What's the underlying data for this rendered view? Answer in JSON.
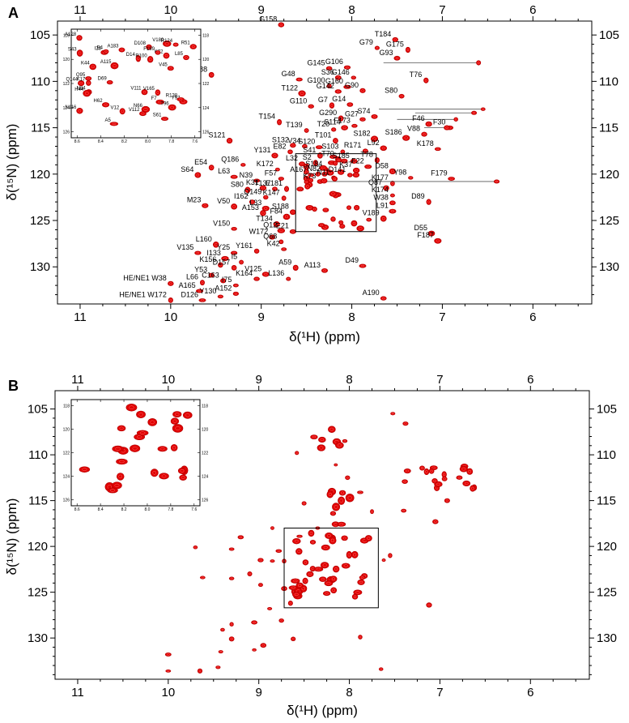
{
  "figure": {
    "panel_labels": [
      "A",
      "B"
    ]
  },
  "chart_data": [
    {
      "type": "scatter",
      "panel": "A",
      "title": "",
      "xlabel": "δ(¹H) (ppm)",
      "ylabel": "δ(¹⁵N) (ppm)",
      "x_axis_reversed": true,
      "y_axis_reversed": true,
      "xlim": [
        11.25,
        5.35
      ],
      "ylim": [
        103.5,
        134.0
      ],
      "x_ticks": [
        11,
        10,
        9,
        8,
        7,
        6
      ],
      "y_ticks": [
        105,
        110,
        115,
        120,
        125,
        130
      ],
      "grid": false,
      "legend": "none",
      "peak_color": "#e00000",
      "inset": {
        "xlim": [
          8.65,
          7.55
        ],
        "ylim": [
          117.5,
          126.5
        ],
        "x_ticks": [
          8.6,
          8.4,
          8.2,
          8.0,
          7.8,
          7.6
        ],
        "y_ticks": [
          118,
          120,
          122,
          124,
          126
        ],
        "labels": [
          "Q144",
          "N116",
          "V180",
          "L85",
          "Y97",
          "V12",
          "V111",
          "Q95",
          "D14",
          "R100",
          "H62",
          "R124",
          "S61",
          "S43",
          "A128",
          "D108",
          "K17",
          "F7",
          "R138",
          "K44",
          "N66",
          "I26",
          "V45",
          "A5",
          "A115",
          "K72",
          "V112",
          "T96",
          "V165",
          "R51",
          "A183",
          "E4",
          "D69",
          "F189",
          "N84",
          "H44"
        ]
      },
      "zoom_box": {
        "x_range": [
          8.62,
          7.73
        ],
        "y_range": [
          117.8,
          126.2
        ]
      },
      "peaks": [
        {
          "label": "G158",
          "x": 8.78,
          "y": 103.9
        },
        {
          "label": "G79",
          "x": 7.72,
          "y": 106.4
        },
        {
          "label": "T184",
          "x": 7.52,
          "y": 105.5
        },
        {
          "label": "G175",
          "x": 7.38,
          "y": 106.6
        },
        {
          "label": "G93",
          "x": 7.5,
          "y": 107.5
        },
        {
          "label": "G188",
          "x": 9.55,
          "y": 109.3
        },
        {
          "label": "G48",
          "x": 8.58,
          "y": 109.8
        },
        {
          "label": "G145",
          "x": 8.25,
          "y": 108.6
        },
        {
          "label": "G106",
          "x": 8.05,
          "y": 108.5
        },
        {
          "label": "S36",
          "x": 8.15,
          "y": 109.6
        },
        {
          "label": "G146",
          "x": 7.98,
          "y": 109.6
        },
        {
          "label": "T122",
          "x": 8.55,
          "y": 111.3
        },
        {
          "label": "G100",
          "x": 8.25,
          "y": 110.5
        },
        {
          "label": "G160",
          "x": 8.05,
          "y": 110.6
        },
        {
          "label": "G90",
          "x": 7.88,
          "y": 111.0
        },
        {
          "label": "G142",
          "x": 8.15,
          "y": 111.1
        },
        {
          "label": "G7",
          "x": 8.22,
          "y": 112.6
        },
        {
          "label": "G110",
          "x": 8.45,
          "y": 112.7
        },
        {
          "label": "G14",
          "x": 8.02,
          "y": 112.5
        },
        {
          "label": "T76",
          "x": 7.18,
          "y": 109.9
        },
        {
          "label": "S80",
          "x": 7.45,
          "y": 111.6
        },
        {
          "label": "T154",
          "x": 8.8,
          "y": 114.4
        },
        {
          "label": "G290",
          "x": 8.12,
          "y": 114.0
        },
        {
          "label": "G27",
          "x": 7.88,
          "y": 114.1
        },
        {
          "label": "S74",
          "x": 7.75,
          "y": 113.8
        },
        {
          "label": "S114",
          "x": 8.08,
          "y": 115.0
        },
        {
          "label": "T20",
          "x": 8.2,
          "y": 115.2
        },
        {
          "label": "F173",
          "x": 7.97,
          "y": 114.8
        },
        {
          "label": "T139",
          "x": 8.5,
          "y": 115.3
        },
        {
          "label": "F46",
          "x": 7.15,
          "y": 114.6
        },
        {
          "label": "F30",
          "x": 6.92,
          "y": 115.0
        },
        {
          "label": "V88",
          "x": 7.2,
          "y": 115.7
        },
        {
          "label": "S121",
          "x": 9.35,
          "y": 116.4
        },
        {
          "label": "S132",
          "x": 8.65,
          "y": 116.9
        },
        {
          "label": "V34",
          "x": 8.52,
          "y": 117.0
        },
        {
          "label": "S120",
          "x": 8.36,
          "y": 117.1
        },
        {
          "label": "T101",
          "x": 8.18,
          "y": 116.4
        },
        {
          "label": "S182",
          "x": 7.75,
          "y": 116.2
        },
        {
          "label": "S186",
          "x": 7.4,
          "y": 116.1
        },
        {
          "label": "L92",
          "x": 7.65,
          "y": 117.2
        },
        {
          "label": "K178",
          "x": 7.05,
          "y": 117.3
        },
        {
          "label": "R171",
          "x": 7.85,
          "y": 117.5
        },
        {
          "label": "E82",
          "x": 8.68,
          "y": 117.6
        },
        {
          "label": "Y131",
          "x": 8.85,
          "y": 118.0
        },
        {
          "label": "S41",
          "x": 8.35,
          "y": 118.0
        },
        {
          "label": "S103",
          "x": 8.1,
          "y": 117.6
        },
        {
          "label": "L32",
          "x": 8.55,
          "y": 118.9
        },
        {
          "label": "S2",
          "x": 8.4,
          "y": 118.8
        },
        {
          "label": "T70",
          "x": 8.15,
          "y": 118.4
        },
        {
          "label": "S185",
          "x": 7.98,
          "y": 118.6
        },
        {
          "label": "T78",
          "x": 7.72,
          "y": 118.5
        },
        {
          "label": "F22",
          "x": 7.82,
          "y": 119.2
        },
        {
          "label": "S184",
          "x": 8.28,
          "y": 119.5
        },
        {
          "label": "K37",
          "x": 7.95,
          "y": 119.6
        },
        {
          "label": "D58",
          "x": 7.55,
          "y": 119.7
        },
        {
          "label": "E54",
          "x": 9.55,
          "y": 119.3
        },
        {
          "label": "Q186",
          "x": 9.2,
          "y": 119.0
        },
        {
          "label": "K172",
          "x": 8.82,
          "y": 119.5
        },
        {
          "label": "S64",
          "x": 9.7,
          "y": 120.1
        },
        {
          "label": "L63",
          "x": 9.3,
          "y": 120.3
        },
        {
          "label": "A167",
          "x": 8.45,
          "y": 120.1
        },
        {
          "label": "N82",
          "x": 8.3,
          "y": 120.0
        },
        {
          "label": "N11",
          "x": 8.2,
          "y": 120.4
        },
        {
          "label": "D141",
          "x": 8.02,
          "y": 120.1
        },
        {
          "label": "F179",
          "x": 6.9,
          "y": 120.5
        },
        {
          "label": "Y98",
          "x": 7.35,
          "y": 120.4
        },
        {
          "label": "N39",
          "x": 9.05,
          "y": 120.7
        },
        {
          "label": "F57",
          "x": 8.78,
          "y": 120.5
        },
        {
          "label": "K73",
          "x": 8.35,
          "y": 120.8
        },
        {
          "label": "K177",
          "x": 7.55,
          "y": 121.0
        },
        {
          "label": "Q87",
          "x": 7.62,
          "y": 121.5
        },
        {
          "label": "S80b",
          "x": 9.15,
          "y": 121.7
        },
        {
          "label": "K31",
          "x": 8.98,
          "y": 121.5
        },
        {
          "label": "T137",
          "x": 8.85,
          "y": 121.6
        },
        {
          "label": "E181",
          "x": 8.72,
          "y": 121.6
        },
        {
          "label": "K174",
          "x": 7.55,
          "y": 122.3
        },
        {
          "label": "Q149",
          "x": 8.95,
          "y": 122.5
        },
        {
          "label": "K147",
          "x": 8.75,
          "y": 122.6
        },
        {
          "label": "I162",
          "x": 9.1,
          "y": 123.0
        },
        {
          "label": "V50",
          "x": 9.3,
          "y": 123.5
        },
        {
          "label": "W38",
          "x": 7.55,
          "y": 123.1
        },
        {
          "label": "D89",
          "x": 7.15,
          "y": 123.0
        },
        {
          "label": "M23",
          "x": 9.62,
          "y": 123.4
        },
        {
          "label": "L33",
          "x": 8.95,
          "y": 123.7
        },
        {
          "label": "A153",
          "x": 8.98,
          "y": 124.2
        },
        {
          "label": "L91",
          "x": 7.55,
          "y": 124.0
        },
        {
          "label": "S188",
          "x": 8.65,
          "y": 124.1
        },
        {
          "label": "F84",
          "x": 8.72,
          "y": 124.6
        },
        {
          "label": "V189",
          "x": 7.65,
          "y": 124.8
        },
        {
          "label": "T134",
          "x": 8.83,
          "y": 125.4
        },
        {
          "label": "V150",
          "x": 9.3,
          "y": 125.9
        },
        {
          "label": "Q12",
          "x": 8.78,
          "y": 126.1
        },
        {
          "label": "E21",
          "x": 8.65,
          "y": 126.2
        },
        {
          "label": "D55",
          "x": 7.12,
          "y": 126.4
        },
        {
          "label": "W172",
          "x": 8.88,
          "y": 126.8
        },
        {
          "label": "F187",
          "x": 7.05,
          "y": 127.2
        },
        {
          "label": "Q68",
          "x": 8.78,
          "y": 127.3
        },
        {
          "label": "L160",
          "x": 9.5,
          "y": 127.6
        },
        {
          "label": "V135",
          "x": 9.7,
          "y": 128.5
        },
        {
          "label": "Y25",
          "x": 9.3,
          "y": 128.5
        },
        {
          "label": "Y161",
          "x": 9.05,
          "y": 128.3
        },
        {
          "label": "K42",
          "x": 8.75,
          "y": 128.1
        },
        {
          "label": "I133",
          "x": 9.4,
          "y": 129.1
        },
        {
          "label": "I5",
          "x": 9.22,
          "y": 129.5
        },
        {
          "label": "K156",
          "x": 9.45,
          "y": 129.8
        },
        {
          "label": "D157",
          "x": 9.3,
          "y": 130.1
        },
        {
          "label": "A59",
          "x": 8.62,
          "y": 130.1
        },
        {
          "label": "A113",
          "x": 8.3,
          "y": 130.4
        },
        {
          "label": "D49",
          "x": 7.88,
          "y": 129.9
        },
        {
          "label": "Y53",
          "x": 9.55,
          "y": 130.9
        },
        {
          "label": "V125",
          "x": 8.95,
          "y": 130.8
        },
        {
          "label": "L136",
          "x": 8.7,
          "y": 131.3
        },
        {
          "label": "K164",
          "x": 9.05,
          "y": 131.3
        },
        {
          "label": "C163",
          "x": 9.42,
          "y": 131.5
        },
        {
          "label": "I75",
          "x": 9.28,
          "y": 132.0
        },
        {
          "label": "L66",
          "x": 9.65,
          "y": 131.7
        },
        {
          "label": "HE/NE1 W38",
          "x": 10.0,
          "y": 131.8
        },
        {
          "label": "A165",
          "x": 9.68,
          "y": 132.6
        },
        {
          "label": "A152",
          "x": 9.28,
          "y": 132.9
        },
        {
          "label": "Y130",
          "x": 9.45,
          "y": 133.2
        },
        {
          "label": "HE/NE1 W172",
          "x": 10.0,
          "y": 133.6
        },
        {
          "label": "D126",
          "x": 9.65,
          "y": 133.6
        },
        {
          "label": "A190",
          "x": 7.65,
          "y": 133.4
        }
      ]
    },
    {
      "type": "scatter",
      "panel": "B",
      "title": "",
      "xlabel": "δ(¹H) (ppm)",
      "ylabel": "δ(¹⁵N) (ppm)",
      "x_axis_reversed": true,
      "y_axis_reversed": true,
      "xlim": [
        11.25,
        5.35
      ],
      "ylim": [
        103.0,
        134.5
      ],
      "x_ticks": [
        11,
        10,
        9,
        8,
        7,
        6
      ],
      "y_ticks": [
        105,
        110,
        115,
        120,
        125,
        130
      ],
      "grid": false,
      "legend": "none",
      "peak_color": "#e00000",
      "inset": {
        "xlim": [
          8.65,
          7.55
        ],
        "ylim": [
          117.5,
          126.5
        ],
        "x_ticks": [
          8.6,
          8.4,
          8.2,
          8.0,
          7.8,
          7.6
        ],
        "y_ticks": [
          118,
          120,
          122,
          124,
          126
        ]
      },
      "zoom_box": {
        "x_range": [
          8.72,
          7.68
        ],
        "y_range": [
          118.0,
          126.7
        ]
      }
    }
  ]
}
